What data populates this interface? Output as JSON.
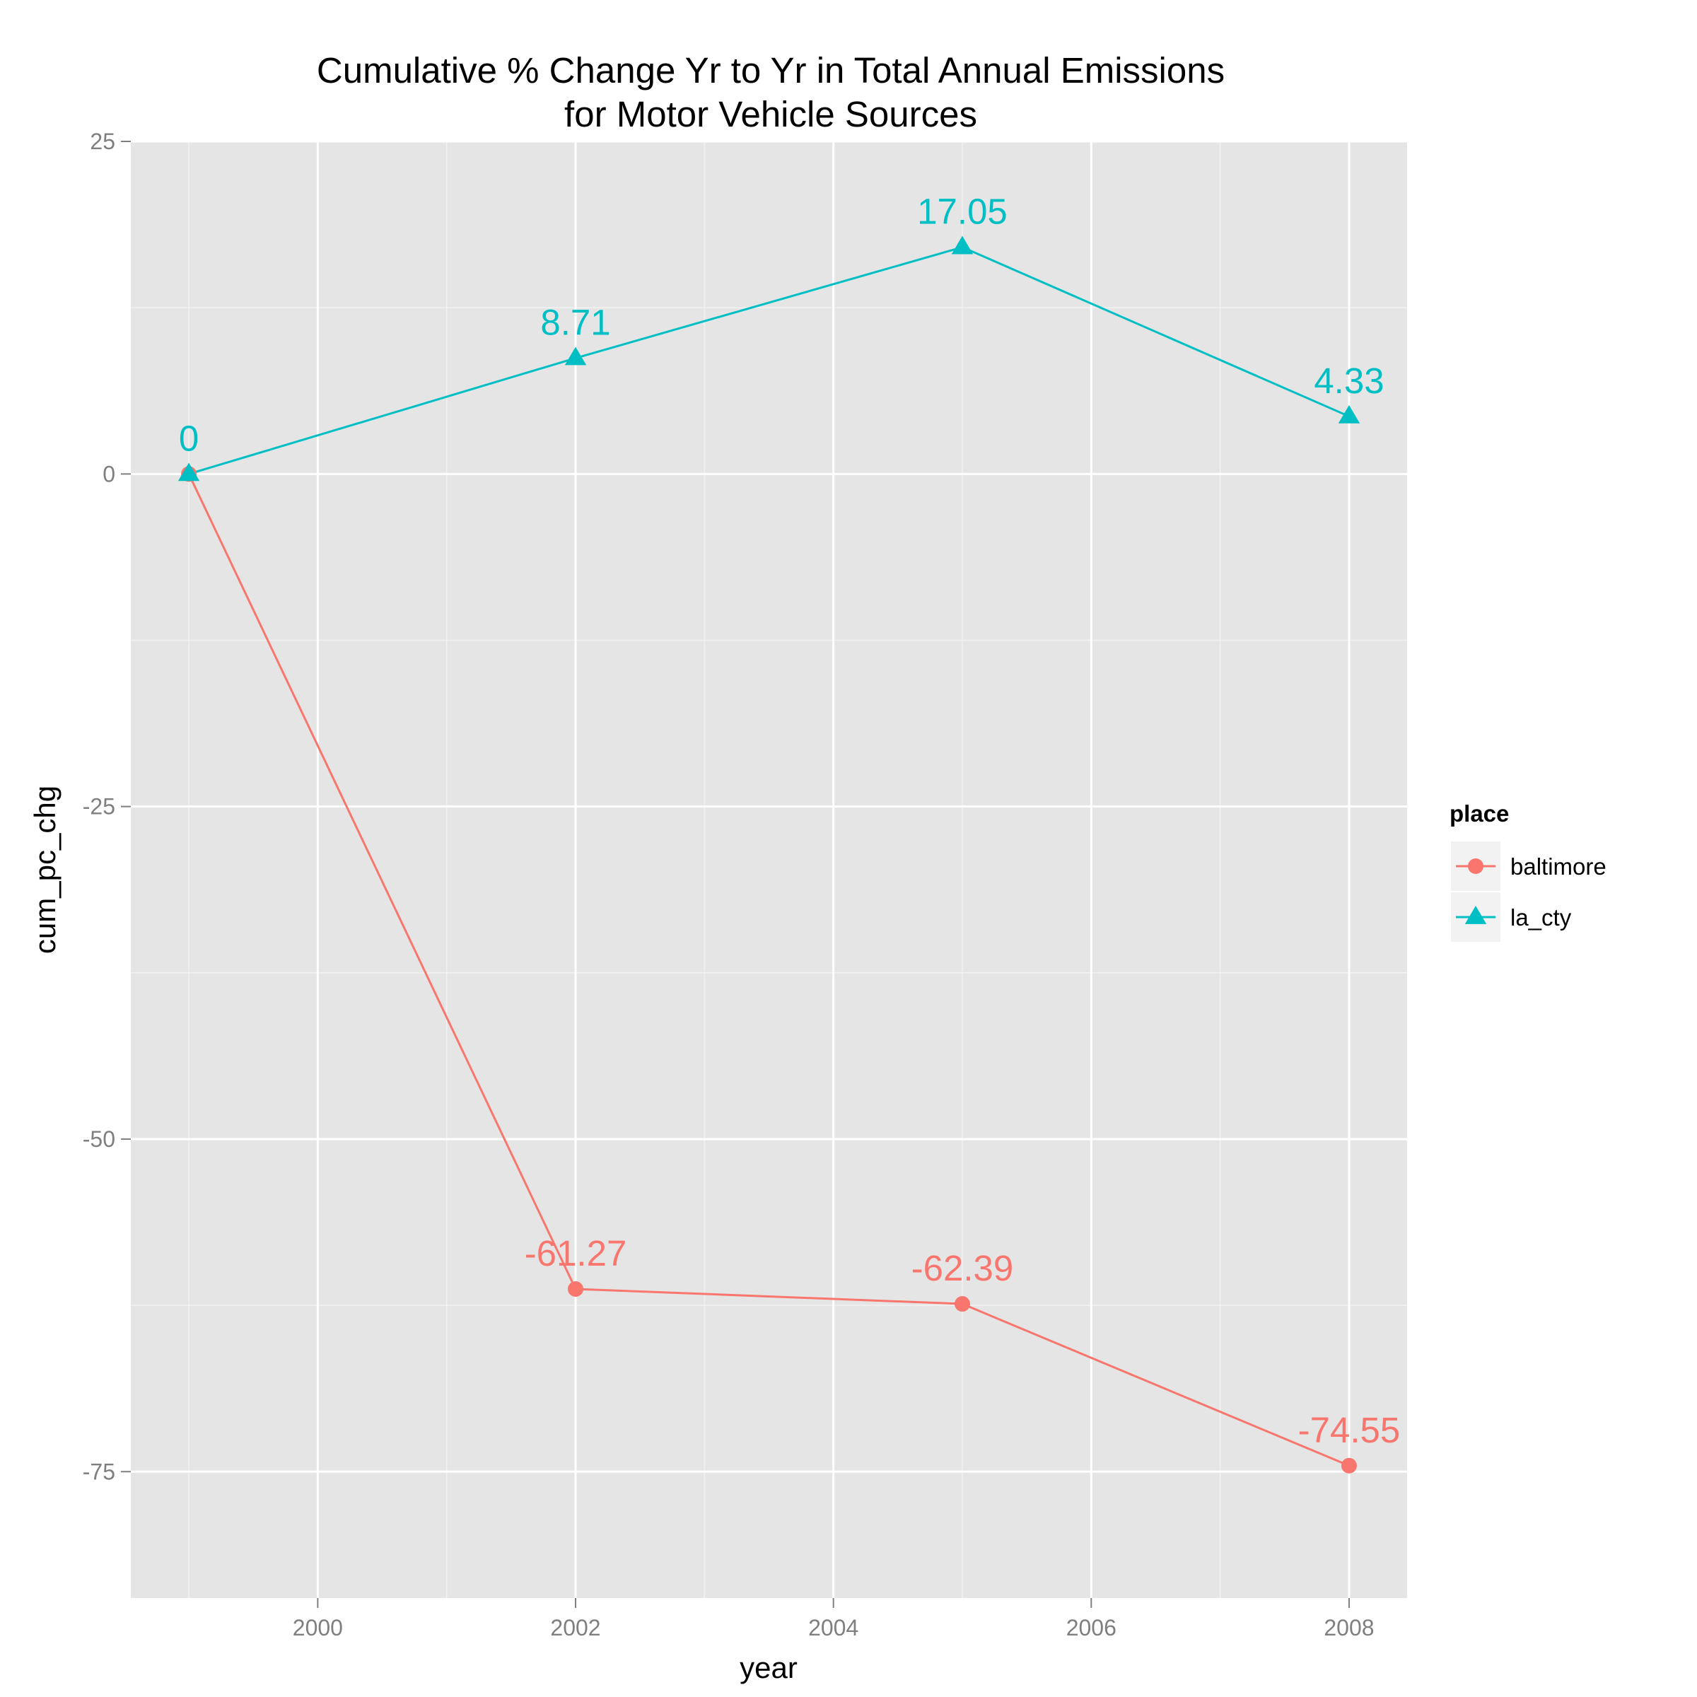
{
  "chart_data": {
    "type": "line",
    "title_line1": "Cumulative % Change Yr to Yr in Total Annual Emissions",
    "title_line2": "for Motor Vehicle Sources",
    "xlabel": "year",
    "ylabel": "cum_pc_chg",
    "x": [
      1999,
      2002,
      2005,
      2008
    ],
    "xlim": [
      1998.55,
      2008.45
    ],
    "ylim": [
      -84.5,
      25
    ],
    "x_ticks": [
      2000,
      2002,
      2004,
      2006,
      2008
    ],
    "x_tick_labels": [
      "2000",
      "2002",
      "2004",
      "2006",
      "2008"
    ],
    "y_ticks": [
      25,
      0,
      -25,
      -50,
      -75
    ],
    "y_tick_labels": [
      "25",
      "0",
      "-25",
      "-50",
      "-75"
    ],
    "y_minor_ticks": [
      12.5,
      -12.5,
      -37.5,
      -62.5
    ],
    "x_minor_ticks": [
      1999,
      2001,
      2003,
      2005,
      2007
    ],
    "grid": true,
    "legend_title": "place",
    "legend_position": "right",
    "series": [
      {
        "name": "baltimore",
        "marker": "circle",
        "color": "#F8766D",
        "values": [
          0,
          -61.27,
          -62.39,
          -74.55
        ],
        "labels": [
          "",
          "-61.27",
          "-62.39",
          "-74.55"
        ]
      },
      {
        "name": "la_cty",
        "marker": "triangle",
        "color": "#00BFC4",
        "values": [
          0,
          8.71,
          17.05,
          4.33
        ],
        "labels": [
          "0",
          "8.71",
          "17.05",
          "4.33"
        ]
      }
    ]
  }
}
